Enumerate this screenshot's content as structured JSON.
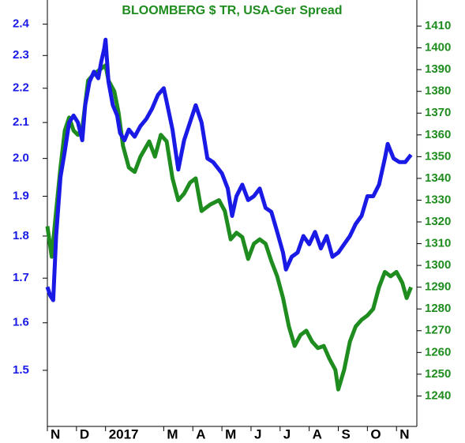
{
  "chart_data": {
    "type": "line",
    "title": "BLOOMBERG $ TR, USA-Ger Spread",
    "xlim": [
      0,
      12.7
    ],
    "xticks": [
      {
        "value": 0,
        "label": "N"
      },
      {
        "value": 1,
        "label": "D"
      },
      {
        "value": 2,
        "label": "2017"
      },
      {
        "value": 4,
        "label": "M"
      },
      {
        "value": 5,
        "label": "A"
      },
      {
        "value": 6,
        "label": "M"
      },
      {
        "value": 7,
        "label": "J"
      },
      {
        "value": 8,
        "label": "J"
      },
      {
        "value": 9,
        "label": "A"
      },
      {
        "value": 10,
        "label": "S"
      },
      {
        "value": 11,
        "label": "O"
      },
      {
        "value": 12,
        "label": "N"
      }
    ],
    "ylim": [
      1.39,
      2.48
    ],
    "log_y": true,
    "yticks": [
      {
        "value": 1.5,
        "label": "1.5"
      },
      {
        "value": 1.6,
        "label": "1.6"
      },
      {
        "value": 1.7,
        "label": "1.7"
      },
      {
        "value": 1.8,
        "label": "1.8"
      },
      {
        "value": 1.9,
        "label": "1.9"
      },
      {
        "value": 2.0,
        "label": "2.0"
      },
      {
        "value": 2.1,
        "label": "2.1"
      },
      {
        "value": 2.2,
        "label": "2.2"
      },
      {
        "value": 2.3,
        "label": "2.3"
      },
      {
        "value": 2.4,
        "label": "2.4"
      }
    ],
    "y2lim": [
      1226,
      1422
    ],
    "y2ticks": [
      1240,
      1250,
      1260,
      1270,
      1280,
      1290,
      1300,
      1310,
      1320,
      1330,
      1340,
      1350,
      1360,
      1370,
      1380,
      1390,
      1400,
      1410
    ],
    "series": [
      {
        "color": "#1a1ae6",
        "axis": "y",
        "x": [
          0,
          0.1,
          0.2,
          0.3,
          0.45,
          0.6,
          0.75,
          0.9,
          1.05,
          1.2,
          1.3,
          1.45,
          1.6,
          1.75,
          1.85,
          1.95,
          2.0,
          2.1,
          2.25,
          2.4,
          2.5,
          2.65,
          2.8,
          3.0,
          3.2,
          3.4,
          3.6,
          3.8,
          4.0,
          4.1,
          4.3,
          4.5,
          4.7,
          4.9,
          5.1,
          5.3,
          5.5,
          5.7,
          6.0,
          6.2,
          6.35,
          6.5,
          6.7,
          6.9,
          7.1,
          7.3,
          7.5,
          7.7,
          7.9,
          8.1,
          8.2,
          8.4,
          8.6,
          8.8,
          9.0,
          9.2,
          9.4,
          9.6,
          9.8,
          10.0,
          10.2,
          10.4,
          10.6,
          10.8,
          11.0,
          11.2,
          11.4,
          11.6,
          11.7,
          11.9,
          12.1,
          12.3,
          12.5
        ],
        "values": [
          1.68,
          1.66,
          1.65,
          1.8,
          1.95,
          2.02,
          2.1,
          2.12,
          2.1,
          2.05,
          2.15,
          2.22,
          2.25,
          2.23,
          2.28,
          2.32,
          2.35,
          2.22,
          2.15,
          2.12,
          2.07,
          2.05,
          2.08,
          2.06,
          2.09,
          2.11,
          2.14,
          2.18,
          2.2,
          2.16,
          2.08,
          1.97,
          2.05,
          2.1,
          2.15,
          2.1,
          2.0,
          1.99,
          1.96,
          1.92,
          1.85,
          1.9,
          1.93,
          1.89,
          1.9,
          1.92,
          1.87,
          1.86,
          1.81,
          1.76,
          1.72,
          1.75,
          1.76,
          1.8,
          1.78,
          1.81,
          1.77,
          1.8,
          1.75,
          1.76,
          1.78,
          1.8,
          1.83,
          1.85,
          1.9,
          1.9,
          1.93,
          2.0,
          2.04,
          2.0,
          1.99,
          1.99,
          2.01
        ]
      },
      {
        "color": "#1e8c1e",
        "axis": "y2",
        "x": [
          0,
          0.15,
          0.3,
          0.45,
          0.6,
          0.75,
          0.9,
          1.05,
          1.2,
          1.4,
          1.6,
          1.8,
          2.0,
          2.1,
          2.3,
          2.45,
          2.6,
          2.8,
          3.0,
          3.2,
          3.5,
          3.7,
          3.9,
          4.1,
          4.3,
          4.5,
          4.7,
          4.9,
          5.1,
          5.3,
          5.6,
          5.9,
          6.1,
          6.3,
          6.5,
          6.7,
          6.9,
          7.1,
          7.3,
          7.5,
          7.7,
          7.9,
          8.1,
          8.3,
          8.5,
          8.7,
          8.9,
          9.1,
          9.3,
          9.5,
          9.7,
          9.9,
          10.0,
          10.2,
          10.4,
          10.6,
          10.8,
          11.0,
          11.2,
          11.4,
          11.6,
          11.8,
          12.0,
          12.2,
          12.35,
          12.5
        ],
        "values": [
          1318,
          1304,
          1325,
          1345,
          1362,
          1368,
          1362,
          1360,
          1363,
          1385,
          1388,
          1390,
          1392,
          1385,
          1380,
          1370,
          1355,
          1345,
          1343,
          1350,
          1357,
          1350,
          1360,
          1357,
          1340,
          1330,
          1333,
          1338,
          1340,
          1325,
          1328,
          1330,
          1325,
          1312,
          1315,
          1313,
          1303,
          1310,
          1312,
          1310,
          1302,
          1295,
          1285,
          1272,
          1263,
          1268,
          1270,
          1265,
          1262,
          1263,
          1257,
          1252,
          1243,
          1252,
          1265,
          1272,
          1275,
          1277,
          1280,
          1290,
          1297,
          1295,
          1297,
          1292,
          1285,
          1290
        ]
      }
    ]
  }
}
